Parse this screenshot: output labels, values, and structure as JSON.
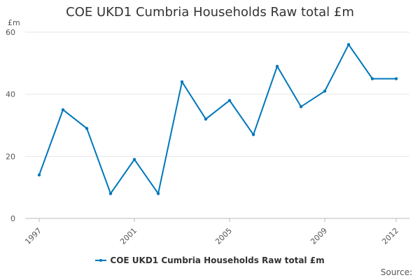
{
  "chart_data": {
    "type": "line",
    "title": "COE UKD1 Cumbria Households Raw total £m",
    "unit_label": "£m",
    "x": [
      1997,
      1998,
      1999,
      2000,
      2001,
      2002,
      2003,
      2004,
      2005,
      2006,
      2007,
      2008,
      2009,
      2010,
      2011,
      2012
    ],
    "x_tick_labels": [
      "1997",
      "2001",
      "2005",
      "2009",
      "2012"
    ],
    "y_ticks": [
      "0",
      "20",
      "40",
      "60"
    ],
    "ylim": [
      0,
      60
    ],
    "grid": true,
    "legend_position": "bottom",
    "series": [
      {
        "name": "COE UKD1 Cumbria Households Raw total £m",
        "color": "#0077bb",
        "values": [
          14,
          35,
          29,
          8,
          19,
          8,
          44,
          32,
          38,
          27,
          49,
          36,
          41,
          56,
          45,
          45
        ]
      }
    ]
  },
  "footer": {
    "source_label": "Source:"
  }
}
